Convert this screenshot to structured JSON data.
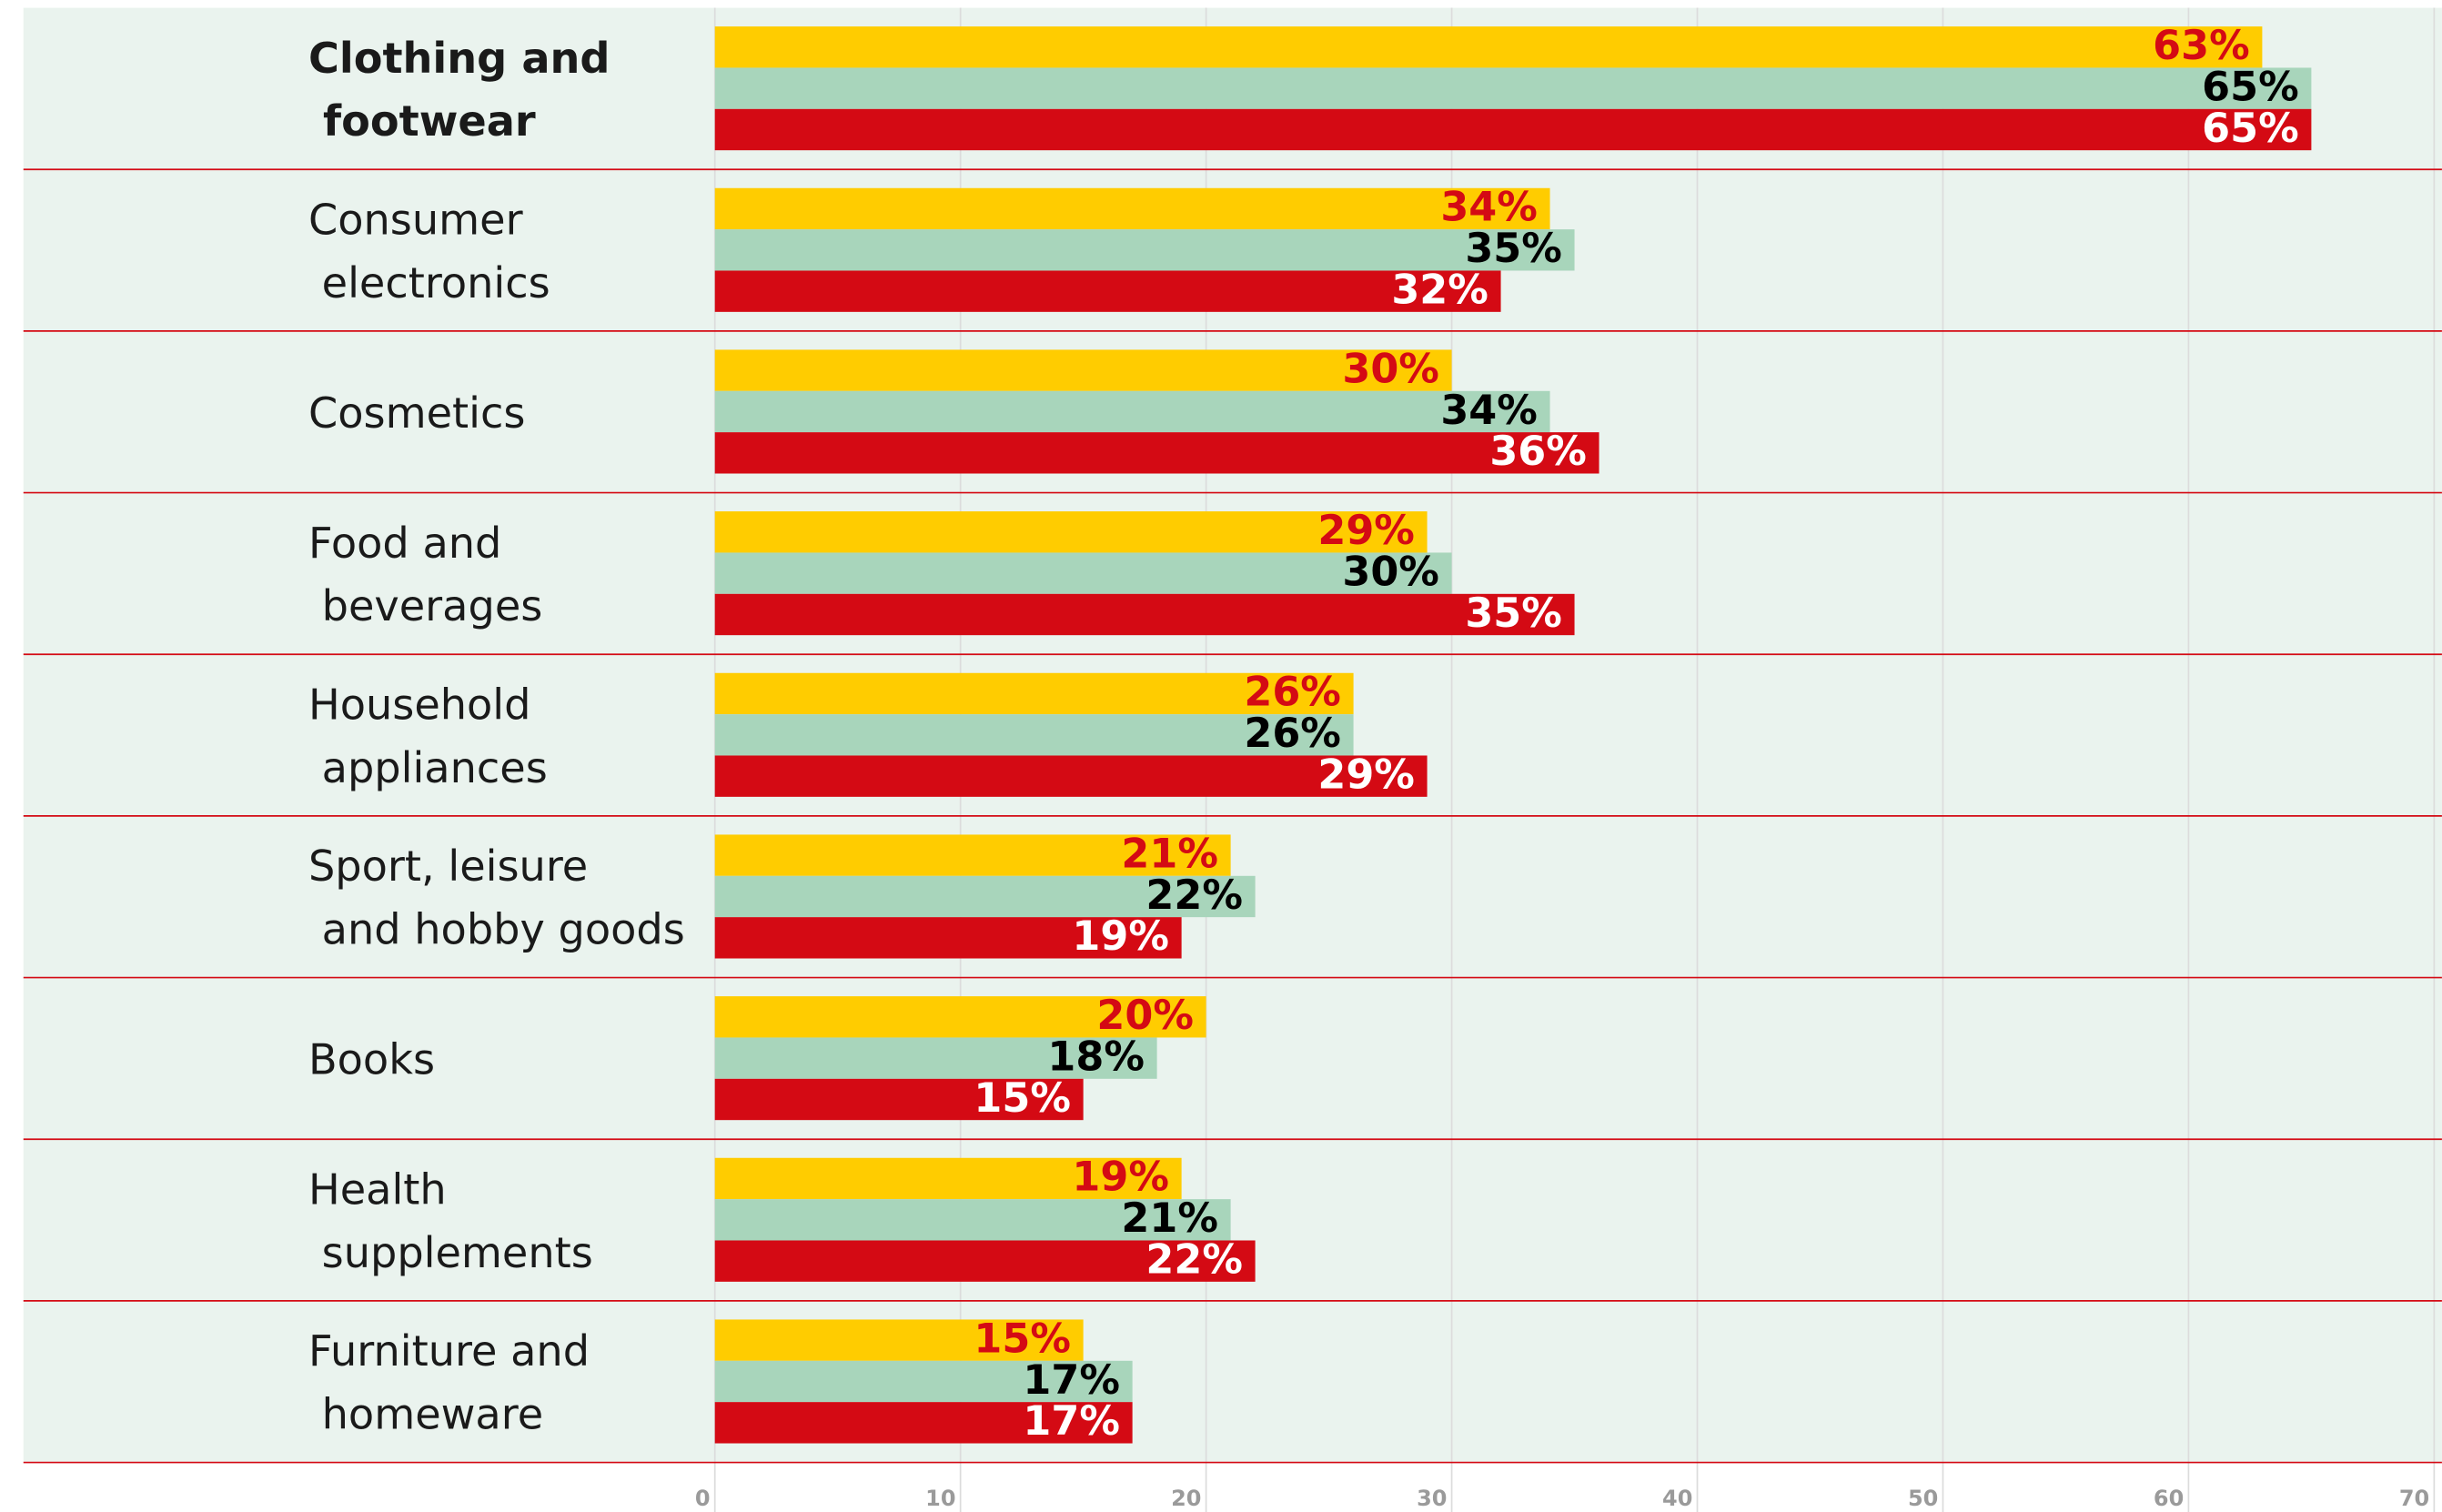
{
  "chart_data": {
    "type": "bar",
    "orientation": "horizontal",
    "categories": [
      "Clothing and footwear",
      "Consumer electronics",
      "Cosmetics",
      "Food and beverages",
      "Household appliances",
      "Sport, leisure and hobby goods",
      "Books",
      "Health supplements",
      "Furniture and homeware"
    ],
    "highlight_index": 0,
    "series": [
      {
        "color": "#ffcc00",
        "label_color": "#d40a14",
        "values": [
          63,
          34,
          30,
          29,
          26,
          21,
          20,
          19,
          15
        ],
        "value_labels": [
          "63%",
          "34%",
          "30%",
          "29%",
          "26%",
          "21%",
          "20%",
          "19%",
          "15%"
        ]
      },
      {
        "color": "#a8d5bb",
        "label_color": "#000000",
        "values": [
          65,
          35,
          34,
          30,
          26,
          22,
          18,
          21,
          17
        ],
        "value_labels": [
          "65%",
          "35%",
          "34%",
          "30%",
          "26%",
          "22%",
          "18%",
          "21%",
          "17%"
        ]
      },
      {
        "color": "#d40a14",
        "label_color": "#ffffff",
        "values": [
          65,
          32,
          36,
          35,
          29,
          19,
          15,
          22,
          17
        ],
        "value_labels": [
          "65%",
          "32%",
          "36%",
          "35%",
          "29%",
          "19%",
          "15%",
          "22%",
          "17%"
        ]
      }
    ],
    "xlim": [
      0,
      70
    ],
    "xticks": [
      0,
      10,
      20,
      30,
      40,
      50,
      60,
      70
    ],
    "grid": true
  }
}
